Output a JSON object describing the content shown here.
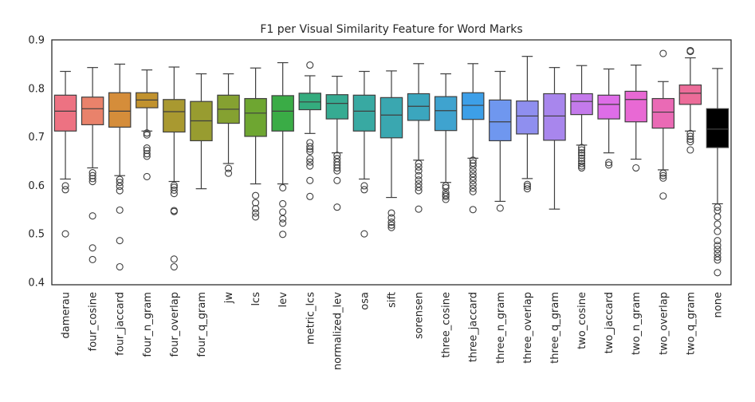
{
  "chart_data": {
    "type": "box",
    "title": "F1 per Visual Similarity Feature for Word Marks",
    "xlabel": "",
    "ylabel": "",
    "ylim": [
      0.395,
      0.9
    ],
    "yticks": [
      "0.4",
      "0.5",
      "0.6",
      "0.7",
      "0.8",
      "0.9"
    ],
    "grid": false,
    "legend": "none",
    "categories": [
      "damerau",
      "four_cosine",
      "four_jaccard",
      "four_n_gram",
      "four_overlap",
      "four_q_gram",
      "jw",
      "lcs",
      "lev",
      "metric_lcs",
      "normalized_lev",
      "osa",
      "sift",
      "sorensen",
      "three_cosine",
      "three_jaccard",
      "three_n_gram",
      "three_overlap",
      "three_q_gram",
      "two_cosine",
      "two_jaccard",
      "two_n_gram",
      "two_overlap",
      "two_q_gram",
      "none"
    ],
    "colors": [
      "#ed7282",
      "#e9826b",
      "#d58d3a",
      "#c1922e",
      "#a99930",
      "#989c30",
      "#85a131",
      "#6ea631",
      "#3aac46",
      "#34ac7e",
      "#36ab92",
      "#38a9a2",
      "#3aa7b0",
      "#3ba6be",
      "#3fa3cf",
      "#3d9fe8",
      "#6f97ef",
      "#8f8fef",
      "#a886ed",
      "#c47aeb",
      "#de6de8",
      "#e869d4",
      "#ea6ab5",
      "#ec6c99"
    ],
    "boxes": [
      {
        "q1": 0.712,
        "median": 0.753,
        "q3": 0.786,
        "whislo": 0.613,
        "whishi": 0.835,
        "fliers": [
          0.599,
          0.591,
          0.5
        ]
      },
      {
        "q1": 0.725,
        "median": 0.758,
        "q3": 0.782,
        "whislo": 0.636,
        "whishi": 0.843,
        "fliers": [
          0.626,
          0.62,
          0.614,
          0.608,
          0.537,
          0.471,
          0.447
        ]
      },
      {
        "q1": 0.72,
        "median": 0.753,
        "q3": 0.791,
        "whislo": 0.62,
        "whishi": 0.85,
        "fliers": [
          0.612,
          0.606,
          0.598,
          0.589,
          0.549,
          0.486,
          0.432
        ]
      },
      {
        "q1": 0.76,
        "median": 0.776,
        "q3": 0.791,
        "whislo": 0.712,
        "whishi": 0.838,
        "fliers": [
          0.708,
          0.704,
          0.677,
          0.672,
          0.665,
          0.66,
          0.618
        ]
      },
      {
        "q1": 0.71,
        "median": 0.752,
        "q3": 0.777,
        "whislo": 0.608,
        "whishi": 0.844,
        "fliers": [
          0.6,
          0.596,
          0.59,
          0.583,
          0.548,
          0.546,
          0.448,
          0.432
        ]
      },
      {
        "q1": 0.692,
        "median": 0.733,
        "q3": 0.773,
        "whislo": 0.593,
        "whishi": 0.83,
        "fliers": []
      },
      {
        "q1": 0.728,
        "median": 0.757,
        "q3": 0.786,
        "whislo": 0.645,
        "whishi": 0.83,
        "fliers": [
          0.635,
          0.625
        ]
      },
      {
        "q1": 0.701,
        "median": 0.749,
        "q3": 0.779,
        "whislo": 0.603,
        "whishi": 0.842,
        "fliers": [
          0.579,
          0.564,
          0.552,
          0.543,
          0.535
        ]
      },
      {
        "q1": 0.712,
        "median": 0.753,
        "q3": 0.785,
        "whislo": 0.603,
        "whishi": 0.853,
        "fliers": [
          0.595,
          0.562,
          0.545,
          0.531,
          0.522,
          0.499
        ]
      },
      {
        "q1": 0.756,
        "median": 0.772,
        "q3": 0.79,
        "whislo": 0.707,
        "whishi": 0.826,
        "fliers": [
          0.848,
          0.688,
          0.68,
          0.675,
          0.67,
          0.655,
          0.648,
          0.64,
          0.61,
          0.577
        ]
      },
      {
        "q1": 0.737,
        "median": 0.769,
        "q3": 0.787,
        "whislo": 0.667,
        "whishi": 0.825,
        "fliers": [
          0.662,
          0.655,
          0.648,
          0.642,
          0.636,
          0.63,
          0.61,
          0.555
        ]
      },
      {
        "q1": 0.712,
        "median": 0.753,
        "q3": 0.786,
        "whislo": 0.613,
        "whishi": 0.835,
        "fliers": [
          0.599,
          0.591,
          0.5
        ]
      },
      {
        "q1": 0.698,
        "median": 0.745,
        "q3": 0.781,
        "whislo": 0.575,
        "whishi": 0.836,
        "fliers": [
          0.543,
          0.533,
          0.524,
          0.518,
          0.513
        ]
      },
      {
        "q1": 0.734,
        "median": 0.763,
        "q3": 0.789,
        "whislo": 0.652,
        "whishi": 0.851,
        "fliers": [
          0.645,
          0.638,
          0.63,
          0.62,
          0.611,
          0.603,
          0.596,
          0.589,
          0.551
        ]
      },
      {
        "q1": 0.713,
        "median": 0.754,
        "q3": 0.783,
        "whislo": 0.606,
        "whishi": 0.83,
        "fliers": [
          0.599,
          0.595,
          0.585,
          0.58,
          0.577,
          0.571
        ]
      },
      {
        "q1": 0.736,
        "median": 0.765,
        "q3": 0.791,
        "whislo": 0.656,
        "whishi": 0.851,
        "fliers": [
          0.652,
          0.646,
          0.64,
          0.632,
          0.624,
          0.617,
          0.61,
          0.602,
          0.594,
          0.587,
          0.55
        ]
      },
      {
        "q1": 0.692,
        "median": 0.731,
        "q3": 0.776,
        "whislo": 0.567,
        "whishi": 0.835,
        "fliers": [
          0.553
        ]
      },
      {
        "q1": 0.706,
        "median": 0.743,
        "q3": 0.774,
        "whislo": 0.614,
        "whishi": 0.866,
        "fliers": [
          0.602,
          0.598,
          0.593
        ]
      },
      {
        "q1": 0.693,
        "median": 0.743,
        "q3": 0.789,
        "whislo": 0.551,
        "whishi": 0.843,
        "fliers": []
      },
      {
        "q1": 0.746,
        "median": 0.773,
        "q3": 0.789,
        "whislo": 0.683,
        "whishi": 0.847,
        "fliers": [
          0.678,
          0.673,
          0.667,
          0.662,
          0.656,
          0.65,
          0.645,
          0.64,
          0.636
        ]
      },
      {
        "q1": 0.737,
        "median": 0.767,
        "q3": 0.786,
        "whislo": 0.667,
        "whishi": 0.84,
        "fliers": [
          0.647,
          0.642
        ]
      },
      {
        "q1": 0.731,
        "median": 0.777,
        "q3": 0.794,
        "whislo": 0.654,
        "whishi": 0.848,
        "fliers": [
          0.636
        ]
      },
      {
        "q1": 0.718,
        "median": 0.751,
        "q3": 0.779,
        "whislo": 0.632,
        "whishi": 0.814,
        "fliers": [
          0.872,
          0.625,
          0.62,
          0.615,
          0.578
        ]
      },
      {
        "q1": 0.767,
        "median": 0.79,
        "q3": 0.807,
        "whislo": 0.712,
        "whishi": 0.863,
        "fliers": [
          0.878,
          0.876,
          0.707,
          0.701,
          0.695,
          0.69,
          0.673
        ]
      },
      {
        "q1": 0.678,
        "median": 0.716,
        "q3": 0.758,
        "whislo": 0.562,
        "whishi": 0.841,
        "fliers": [
          0.555,
          0.548,
          0.535,
          0.52,
          0.505,
          0.486,
          0.476,
          0.468,
          0.46,
          0.452,
          0.446,
          0.42
        ]
      }
    ]
  }
}
